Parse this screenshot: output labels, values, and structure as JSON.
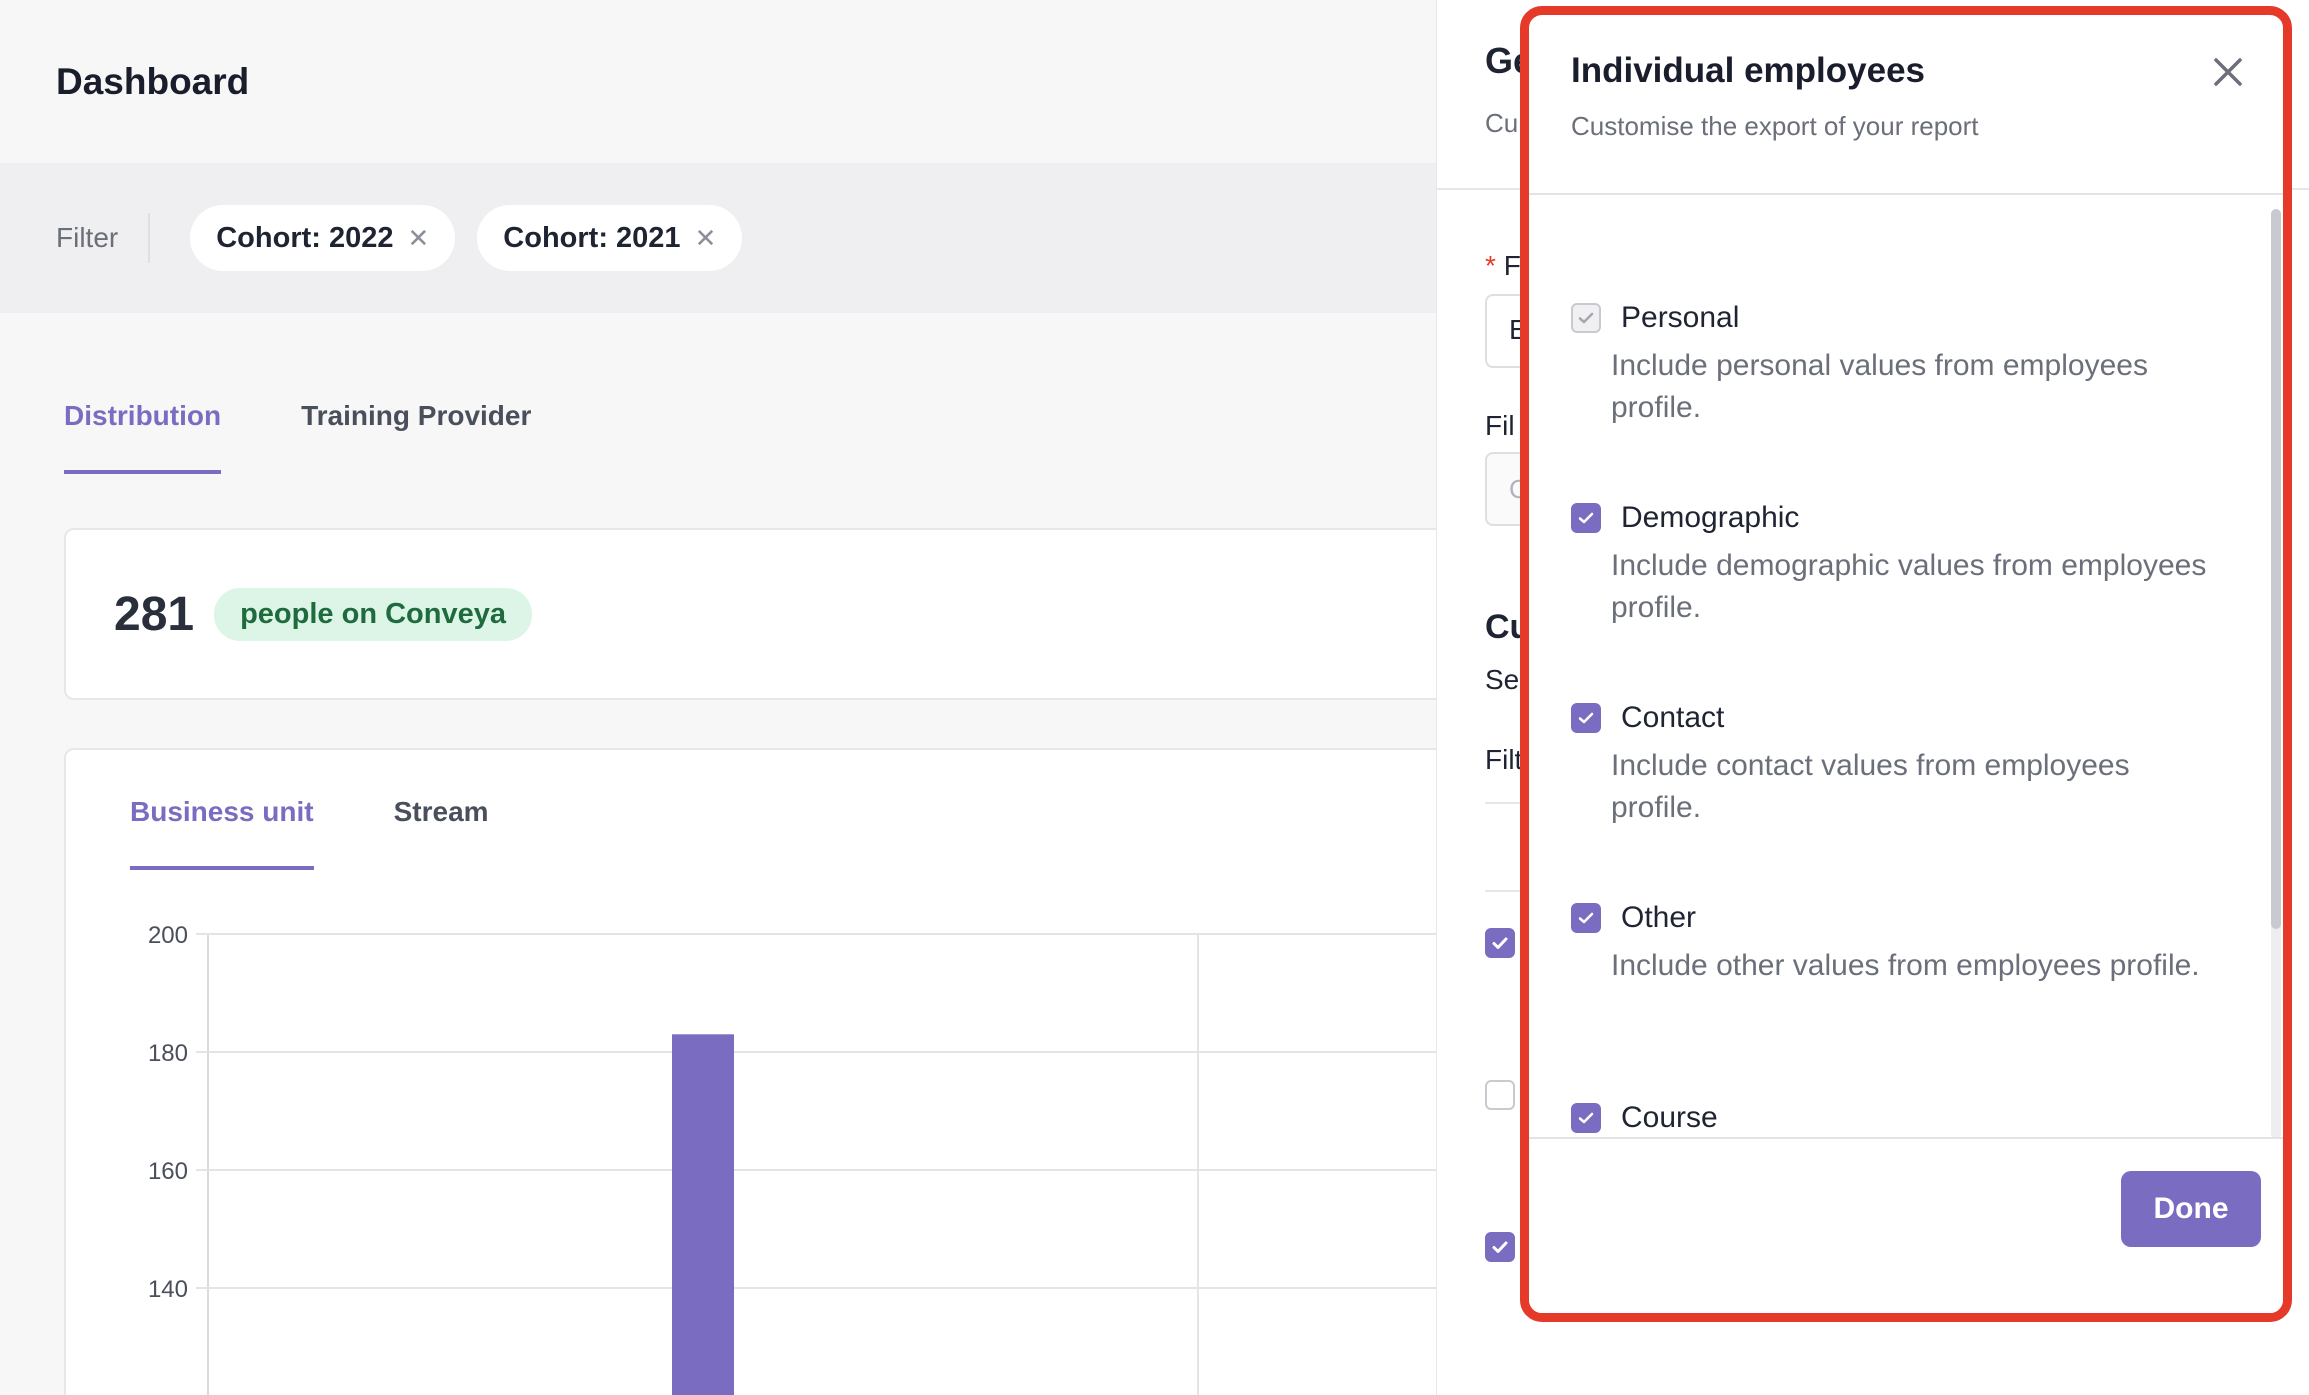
{
  "header": {
    "title": "Dashboard"
  },
  "filter": {
    "label": "Filter",
    "chips": [
      {
        "label": "Cohort: 2022"
      },
      {
        "label": "Cohort: 2021"
      }
    ]
  },
  "tabs": {
    "primary": [
      "Distribution",
      "Training Provider"
    ],
    "active": "Distribution"
  },
  "summary": {
    "count": "281",
    "label": "people on Conveya"
  },
  "chart_tabs": {
    "items": [
      "Business unit",
      "Stream"
    ],
    "active": "Business unit"
  },
  "chart_data": {
    "type": "bar",
    "title": "",
    "xlabel": "",
    "ylabel": "",
    "ylim": [
      120,
      200
    ],
    "yticks": [
      200,
      180,
      160,
      140
    ],
    "series": [
      {
        "values": [
          183
        ]
      }
    ],
    "grid": true,
    "bar_color": "#7a6cc0"
  },
  "background_drawer": {
    "fragments": [
      "Ge",
      "Cu",
      "F",
      "E",
      "Fil",
      "C",
      "Cu",
      "Se",
      "Filt"
    ]
  },
  "panel": {
    "title": "Individual employees",
    "subtitle": "Customise the export of your report",
    "options": [
      {
        "label": "Personal",
        "desc": "Include personal values from employees profile.",
        "checked": true,
        "disabled": true
      },
      {
        "label": "Demographic",
        "desc": "Include demographic values from employees profile.",
        "checked": true,
        "disabled": false
      },
      {
        "label": "Contact",
        "desc": "Include contact values from employees profile.",
        "checked": true,
        "disabled": false
      },
      {
        "label": "Other",
        "desc": "Include other values from employees profile.",
        "checked": true,
        "disabled": false
      },
      {
        "label": "Course",
        "desc": "",
        "checked": true,
        "disabled": false
      }
    ],
    "done_label": "Done"
  },
  "colors": {
    "accent": "#7a6cc0",
    "highlight": "#e53a2a",
    "pill_bg": "#dcf5e6",
    "pill_text": "#1f6b3e"
  },
  "icons": {
    "close": "close-icon",
    "chip_remove": "close-icon",
    "check": "check-icon"
  }
}
